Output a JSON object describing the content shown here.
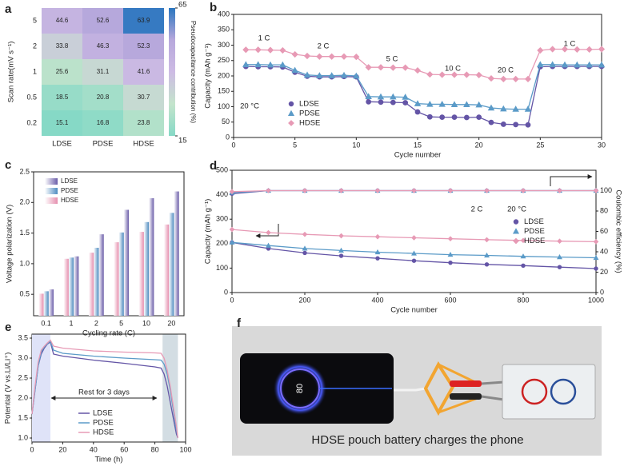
{
  "chart_data": [
    {
      "panel": "a",
      "type": "heatmap",
      "categories": [
        "LDSE",
        "PDSE",
        "HDSE"
      ],
      "y_categories": [
        "5",
        "2",
        "1",
        "0.5",
        "0.2"
      ],
      "values": [
        [
          44.6,
          52.6,
          63.9
        ],
        [
          33.8,
          46.3,
          52.3
        ],
        [
          25.6,
          31.1,
          41.6
        ],
        [
          18.5,
          20.8,
          30.7
        ],
        [
          15.1,
          16.8,
          23.8
        ]
      ],
      "ylabel": "Scan rate(mV s⁻¹)",
      "colorbar_label": "Pseudocapacitance contribution (%)",
      "clim": [
        15,
        65
      ],
      "colorbar_ticks": [
        15,
        65
      ],
      "colorscale": [
        "#86d9c6",
        "#c4e4cc",
        "#cdbbe4",
        "#b7a8dc",
        "#2a76bf"
      ]
    },
    {
      "panel": "b",
      "type": "line",
      "x": [
        1,
        2,
        3,
        4,
        5,
        6,
        7,
        8,
        9,
        10,
        11,
        12,
        13,
        14,
        15,
        16,
        17,
        18,
        19,
        20,
        21,
        22,
        23,
        24,
        25,
        26,
        27,
        28,
        29,
        30
      ],
      "xlim": [
        0,
        30
      ],
      "xticks": [
        0,
        5,
        10,
        15,
        20,
        25,
        30
      ],
      "ylim": [
        0,
        400
      ],
      "yticks": [
        0,
        50,
        100,
        150,
        200,
        250,
        300,
        350,
        400
      ],
      "xlabel": "Cycle number",
      "ylabel": "Capacity (mAh g⁻¹)",
      "annotations": [
        "1 C",
        "2 C",
        "5 C",
        "10 C",
        "20 C",
        "1 C",
        "20 °C"
      ],
      "legend": "lower left",
      "series": [
        {
          "name": "LDSE",
          "color": "#6455a6",
          "marker": "circle",
          "values": [
            231,
            230,
            230,
            229,
            212,
            199,
            197,
            197,
            198,
            197,
            116,
            115,
            114,
            113,
            83,
            67,
            66,
            66,
            65,
            66,
            49,
            43,
            42,
            41,
            230,
            231,
            231,
            231,
            231,
            231
          ]
        },
        {
          "name": "PDSE",
          "color": "#5b9bc8",
          "marker": "triangle",
          "values": [
            237,
            237,
            236,
            236,
            218,
            203,
            201,
            201,
            202,
            200,
            133,
            132,
            132,
            131,
            110,
            108,
            108,
            107,
            107,
            106,
            96,
            93,
            92,
            92,
            237,
            237,
            236,
            236,
            236,
            236
          ]
        },
        {
          "name": "HDSE",
          "color": "#e79ab5",
          "marker": "diamond",
          "values": [
            285,
            285,
            284,
            283,
            270,
            265,
            263,
            263,
            263,
            262,
            228,
            228,
            227,
            227,
            218,
            205,
            204,
            204,
            204,
            203,
            192,
            190,
            190,
            190,
            283,
            287,
            287,
            286,
            286,
            287
          ]
        }
      ]
    },
    {
      "panel": "c",
      "type": "bar",
      "categories": [
        "0.1",
        "1",
        "2",
        "5",
        "10",
        "20"
      ],
      "ylim": [
        0.15,
        2.5
      ],
      "yticks": [
        0.5,
        {
          "value": 1.0,
          "label": "1.0"
        },
        1.5,
        {
          "value": 2.0,
          "label": "2.0"
        },
        2.5
      ],
      "xlabel": "Cycling rate (C)",
      "ylabel": "Voltage polarization (V)",
      "legend": "upper left",
      "series": [
        {
          "name": "LDSE",
          "color": "#6a5ca8",
          "values": [
            0.58,
            1.12,
            1.48,
            1.88,
            2.07,
            2.18
          ]
        },
        {
          "name": "PDSE",
          "color": "#4f8cc0",
          "values": [
            0.55,
            1.1,
            1.26,
            1.51,
            1.68,
            1.83
          ]
        },
        {
          "name": "HDSE",
          "color": "#e58fae",
          "values": [
            0.51,
            1.08,
            1.18,
            1.35,
            1.52,
            1.64
          ]
        }
      ]
    },
    {
      "panel": "d",
      "type": "line",
      "x": [
        0,
        100,
        200,
        300,
        400,
        500,
        600,
        700,
        800,
        900,
        1000
      ],
      "xlim": [
        0,
        1000
      ],
      "xticks": [
        0,
        200,
        400,
        600,
        800,
        1000
      ],
      "ylim": [
        0,
        500
      ],
      "yticks": [
        0,
        100,
        200,
        300,
        400,
        500
      ],
      "y2lim": [
        0,
        120
      ],
      "y2ticks": [
        0,
        20,
        40,
        60,
        80,
        100
      ],
      "xlabel": "Cycle number",
      "ylabel": "Capacity (mAh g⁻¹)",
      "y2label": "Coulombic efficiency (%)",
      "annotations": [
        "2 C",
        "20 °C"
      ],
      "legend": "center right",
      "series": [
        {
          "name": "LDSE",
          "color": "#6455a6",
          "marker": "circle",
          "values": [
            205,
            180,
            162,
            150,
            140,
            130,
            122,
            115,
            110,
            104,
            98
          ],
          "ce_values": [
            97,
            100,
            100,
            100,
            100,
            100,
            100,
            100,
            100,
            100,
            100
          ]
        },
        {
          "name": "PDSE",
          "color": "#5b9bc8",
          "marker": "triangle",
          "values": [
            205,
            192,
            180,
            172,
            165,
            160,
            155,
            152,
            148,
            145,
            142
          ],
          "ce_values": [
            98,
            100,
            100,
            100,
            100,
            100,
            100,
            100,
            100,
            100,
            100
          ]
        },
        {
          "name": "HDSE",
          "color": "#e79ab5",
          "marker": "diamond",
          "values": [
            258,
            245,
            238,
            232,
            228,
            224,
            220,
            216,
            213,
            210,
            208
          ],
          "ce_values": [
            99,
            100,
            100,
            100,
            100,
            100,
            100,
            100,
            100,
            100,
            100
          ]
        }
      ]
    },
    {
      "panel": "e",
      "type": "line",
      "x": [
        0,
        2,
        4,
        6,
        8,
        10,
        12,
        14,
        20,
        40,
        60,
        80,
        84,
        86,
        88,
        90,
        92,
        94,
        95
      ],
      "xlim": [
        0,
        100
      ],
      "xticks": [
        0,
        20,
        40,
        60,
        80,
        100
      ],
      "ylim": [
        0.9,
        3.6
      ],
      "yticks": [
        {
          "value": 1.0,
          "label": "1.0"
        },
        1.5,
        {
          "value": 2.0,
          "label": "2.0"
        },
        2.5,
        {
          "value": 3.0,
          "label": "3.0"
        },
        3.5
      ],
      "xlabel": "Time (h)",
      "ylabel": "Potential (V vs.Li/Li⁺)",
      "annotations": [
        "Rest for 3 days"
      ],
      "shaded_spans": [
        [
          0,
          12
        ],
        [
          85,
          95
        ]
      ],
      "span_colors": [
        "#dfe3f8",
        "#d3dde3"
      ],
      "legend": "lower right",
      "series": [
        {
          "name": "LDSE",
          "color": "#6455a6",
          "values": [
            1.6,
            2.2,
            2.8,
            3.1,
            3.25,
            3.35,
            3.4,
            3.1,
            3.05,
            2.95,
            2.87,
            2.78,
            2.75,
            2.6,
            2.3,
            1.9,
            1.5,
            1.1,
            1.0
          ]
        },
        {
          "name": "PDSE",
          "color": "#5b9bc8",
          "values": [
            1.6,
            2.2,
            2.8,
            3.15,
            3.28,
            3.36,
            3.42,
            3.2,
            3.12,
            3.05,
            3.0,
            2.96,
            2.95,
            2.85,
            2.6,
            2.2,
            1.7,
            1.2,
            1.0
          ]
        },
        {
          "name": "HDSE",
          "color": "#e79ab5",
          "values": [
            1.6,
            2.3,
            2.9,
            3.2,
            3.3,
            3.38,
            3.45,
            3.3,
            3.25,
            3.18,
            3.15,
            3.13,
            3.12,
            3.0,
            2.7,
            2.3,
            1.8,
            1.3,
            1.0
          ]
        }
      ]
    }
  ],
  "photo": {
    "panel": "f",
    "screen_text": "80",
    "caption": "HDSE pouch battery charges the phone"
  }
}
